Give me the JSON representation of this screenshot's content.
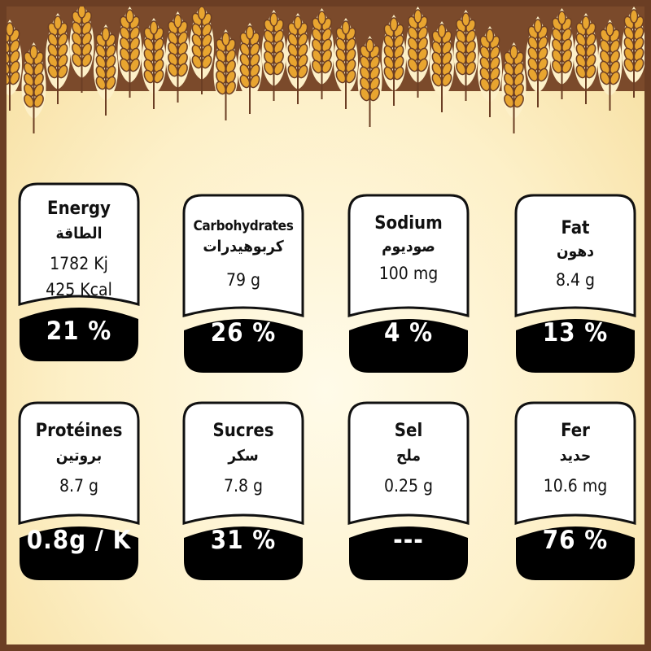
{
  "cards": [
    {
      "title": "Energy",
      "arabic": "الطاقة",
      "value1": "1782 Kj",
      "value2": "425 Kcal",
      "percent": "21 %"
    },
    {
      "title": "Carbohydrates",
      "arabic": "كربوهيدرات",
      "value1": "79 g",
      "percent": "26 %"
    },
    {
      "title": "Sodium",
      "arabic": "صوديوم",
      "value1": "100 mg",
      "percent": "4 %"
    },
    {
      "title": "Fat",
      "arabic": "دهون",
      "value1": "8.4 g",
      "percent": "13 %"
    },
    {
      "title": "Protéines",
      "arabic": "بروتين",
      "value1": "8.7 g",
      "percent": "0.8g / K"
    },
    {
      "title": "Sucres",
      "arabic": "سكر",
      "value1": "7.8 g",
      "percent": "31 %"
    },
    {
      "title": "Sel",
      "arabic": "ملح",
      "value1": "0.25 g",
      "percent": "---"
    },
    {
      "title": "Fer",
      "arabic": "حديد",
      "value1": "10.6 mg",
      "percent": "76 %"
    }
  ],
  "colors": {
    "brown": "#7b4a2b",
    "wheat": "#e8a530",
    "cream": "#fdf0c8"
  }
}
